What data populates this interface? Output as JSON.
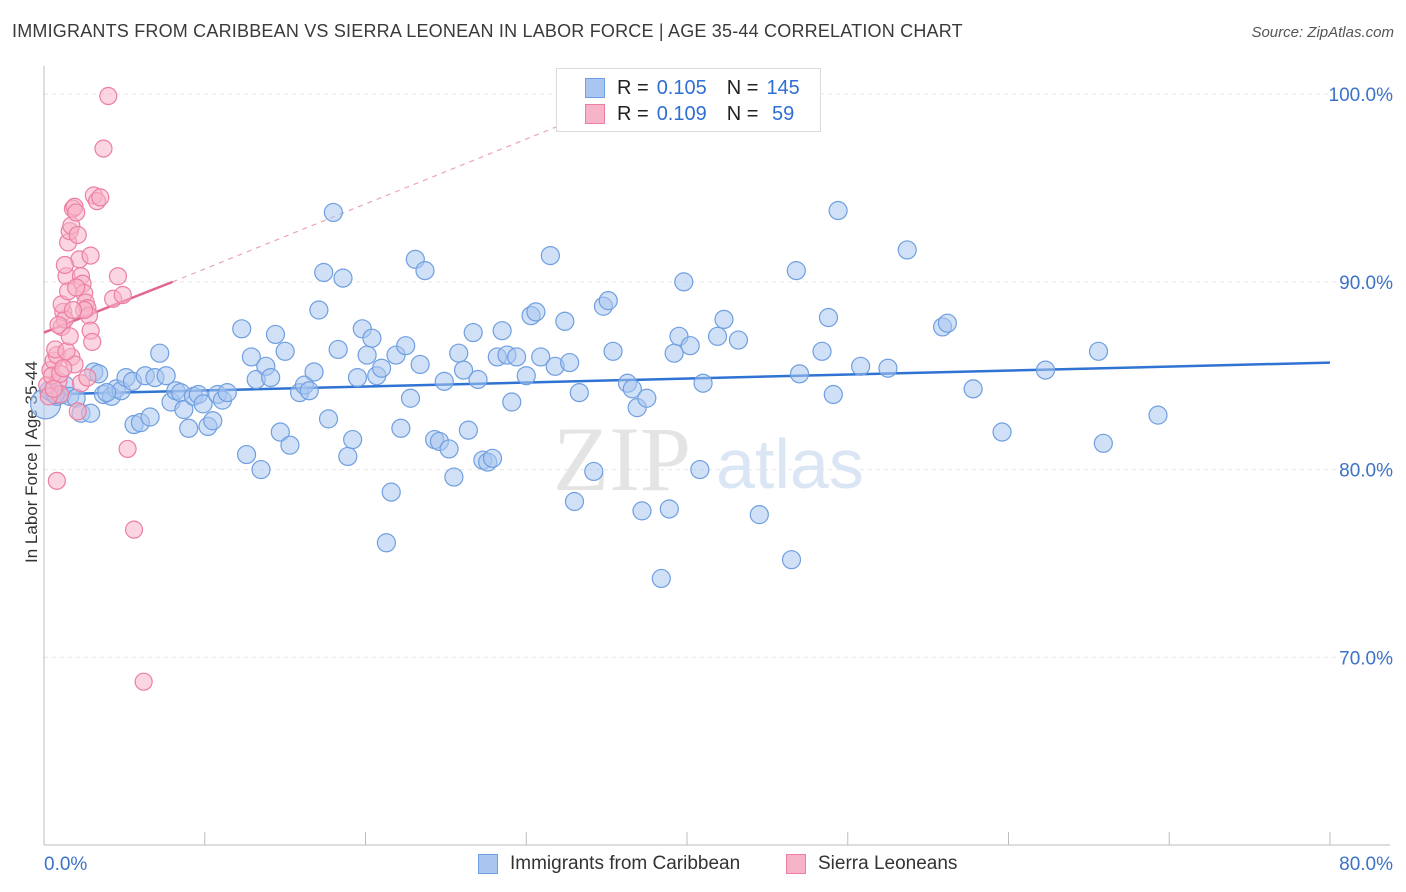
{
  "header": {
    "title": "IMMIGRANTS FROM CARIBBEAN VS SIERRA LEONEAN IN LABOR FORCE | AGE 35-44 CORRELATION CHART",
    "source": "Source: ZipAtlas.com"
  },
  "watermark": {
    "zip": "ZIP",
    "atlas": "atlas"
  },
  "legend": {
    "rows": [
      {
        "r_label": "R = ",
        "r_value": "0.105",
        "n_label": "N = ",
        "n_value": "145"
      },
      {
        "r_label": "R = ",
        "r_value": "0.109",
        "n_label": "N = ",
        "n_value": " 59"
      }
    ]
  },
  "bottom_legend": {
    "blue": "Immigrants from Caribbean",
    "pink": "Sierra Leoneans"
  },
  "colors": {
    "blue_fill": "#a9c6f0",
    "blue_stroke": "#6f9fe0",
    "blue_line": "#2f73d3",
    "pink_fill": "#f7b3c8",
    "pink_stroke": "#ec7fa2",
    "pink_line": "#e06590",
    "tick_label": "#3d73c7",
    "grid": "#e6e6e6"
  },
  "chart_data": {
    "type": "scatter",
    "title": "IMMIGRANTS FROM CARIBBEAN VS SIERRA LEONEAN IN LABOR FORCE | AGE 35-44 CORRELATION CHART",
    "xlabel": "",
    "ylabel": "In Labor Force | Age 35-44",
    "xlim": [
      0,
      80
    ],
    "ylim": [
      60,
      101.5
    ],
    "x_tick_labels": [
      "0.0%",
      "80.0%"
    ],
    "y_ticks": [
      70,
      80,
      90,
      100
    ],
    "y_tick_labels": [
      "70.0%",
      "80.0%",
      "90.0%",
      "100.0%"
    ],
    "series": [
      {
        "name": "Immigrants from Caribbean",
        "color": "blue",
        "r": 0.105,
        "n": 145,
        "trend": {
          "x": [
            0,
            80
          ],
          "y": [
            84.0,
            85.7
          ]
        },
        "points": [
          [
            0.1,
            83.5
          ],
          [
            0.5,
            84.1
          ],
          [
            0.8,
            83.9
          ],
          [
            1.1,
            84.0
          ],
          [
            1.3,
            84.5
          ],
          [
            1.6,
            83.9
          ],
          [
            2.0,
            83.8
          ],
          [
            2.3,
            83.0
          ],
          [
            2.9,
            83.0
          ],
          [
            3.1,
            85.2
          ],
          [
            3.4,
            85.1
          ],
          [
            3.7,
            84.0
          ],
          [
            4.2,
            83.9
          ],
          [
            4.5,
            84.3
          ],
          [
            4.8,
            84.2
          ],
          [
            5.1,
            84.9
          ],
          [
            5.5,
            84.7
          ],
          [
            5.6,
            82.4
          ],
          [
            6.0,
            82.5
          ],
          [
            6.3,
            85.0
          ],
          [
            6.6,
            82.8
          ],
          [
            6.9,
            84.9
          ],
          [
            7.2,
            86.2
          ],
          [
            7.6,
            85.0
          ],
          [
            7.9,
            83.6
          ],
          [
            8.2,
            84.2
          ],
          [
            8.5,
            84.1
          ],
          [
            8.7,
            83.2
          ],
          [
            9.0,
            82.2
          ],
          [
            9.3,
            83.9
          ],
          [
            9.6,
            84.0
          ],
          [
            9.9,
            83.5
          ],
          [
            10.2,
            82.3
          ],
          [
            10.5,
            82.6
          ],
          [
            10.8,
            84.0
          ],
          [
            11.1,
            83.7
          ],
          [
            11.4,
            84.1
          ],
          [
            12.3,
            87.5
          ],
          [
            12.6,
            80.8
          ],
          [
            12.9,
            86.0
          ],
          [
            13.2,
            84.8
          ],
          [
            13.5,
            80.0
          ],
          [
            13.8,
            85.5
          ],
          [
            14.1,
            84.9
          ],
          [
            14.4,
            87.2
          ],
          [
            14.7,
            82.0
          ],
          [
            15.0,
            86.3
          ],
          [
            15.3,
            81.3
          ],
          [
            15.9,
            84.1
          ],
          [
            16.2,
            84.5
          ],
          [
            16.5,
            84.2
          ],
          [
            16.8,
            85.2
          ],
          [
            17.1,
            88.5
          ],
          [
            17.4,
            90.5
          ],
          [
            17.7,
            82.7
          ],
          [
            18.0,
            93.7
          ],
          [
            18.3,
            86.4
          ],
          [
            18.6,
            90.2
          ],
          [
            18.9,
            80.7
          ],
          [
            19.2,
            81.6
          ],
          [
            19.5,
            84.9
          ],
          [
            19.8,
            87.5
          ],
          [
            20.1,
            86.1
          ],
          [
            20.4,
            87.0
          ],
          [
            20.7,
            85.0
          ],
          [
            21.0,
            85.4
          ],
          [
            21.3,
            76.1
          ],
          [
            21.6,
            78.8
          ],
          [
            21.9,
            86.1
          ],
          [
            22.2,
            82.2
          ],
          [
            22.5,
            86.6
          ],
          [
            22.8,
            83.8
          ],
          [
            23.1,
            91.2
          ],
          [
            23.4,
            85.6
          ],
          [
            23.7,
            90.6
          ],
          [
            24.3,
            81.6
          ],
          [
            24.6,
            81.5
          ],
          [
            24.9,
            84.7
          ],
          [
            25.2,
            81.1
          ],
          [
            25.5,
            79.6
          ],
          [
            25.8,
            86.2
          ],
          [
            26.1,
            85.3
          ],
          [
            26.4,
            82.1
          ],
          [
            26.7,
            87.3
          ],
          [
            27.0,
            84.8
          ],
          [
            27.3,
            80.5
          ],
          [
            27.6,
            80.4
          ],
          [
            27.9,
            80.6
          ],
          [
            28.2,
            86.0
          ],
          [
            28.5,
            87.4
          ],
          [
            28.8,
            86.1
          ],
          [
            29.1,
            83.6
          ],
          [
            29.4,
            86.0
          ],
          [
            30.0,
            85.0
          ],
          [
            30.3,
            88.2
          ],
          [
            30.6,
            88.4
          ],
          [
            30.9,
            86.0
          ],
          [
            31.5,
            91.4
          ],
          [
            31.8,
            85.5
          ],
          [
            32.4,
            87.9
          ],
          [
            32.7,
            85.7
          ],
          [
            33.0,
            78.3
          ],
          [
            33.3,
            84.1
          ],
          [
            34.2,
            79.9
          ],
          [
            34.8,
            88.7
          ],
          [
            35.1,
            89.0
          ],
          [
            35.4,
            86.3
          ],
          [
            36.3,
            84.6
          ],
          [
            36.6,
            84.3
          ],
          [
            36.9,
            83.3
          ],
          [
            37.2,
            77.8
          ],
          [
            37.5,
            83.8
          ],
          [
            38.4,
            74.2
          ],
          [
            38.9,
            77.9
          ],
          [
            39.2,
            86.2
          ],
          [
            39.5,
            87.1
          ],
          [
            39.8,
            90.0
          ],
          [
            40.2,
            86.6
          ],
          [
            40.8,
            80.0
          ],
          [
            41.0,
            84.6
          ],
          [
            41.9,
            87.1
          ],
          [
            42.3,
            88.0
          ],
          [
            43.2,
            86.9
          ],
          [
            44.5,
            77.6
          ],
          [
            46.5,
            75.2
          ],
          [
            46.8,
            90.6
          ],
          [
            47.0,
            85.1
          ],
          [
            48.4,
            86.3
          ],
          [
            48.8,
            88.1
          ],
          [
            49.1,
            84.0
          ],
          [
            49.4,
            93.8
          ],
          [
            50.8,
            85.5
          ],
          [
            52.5,
            85.4
          ],
          [
            53.7,
            91.7
          ],
          [
            55.9,
            87.6
          ],
          [
            56.2,
            87.8
          ],
          [
            57.8,
            84.3
          ],
          [
            59.6,
            82.0
          ],
          [
            62.3,
            85.3
          ],
          [
            65.6,
            86.3
          ],
          [
            65.9,
            81.4
          ],
          [
            69.3,
            82.9
          ],
          [
            0.3,
            84.2
          ],
          [
            0.7,
            84.0
          ],
          [
            3.9,
            84.1
          ]
        ]
      },
      {
        "name": "Sierra Leoneans",
        "color": "pink",
        "r": 0.109,
        "n": 59,
        "trend": {
          "x": [
            0,
            8
          ],
          "y": [
            87.3,
            90.0
          ]
        },
        "trend_dashed": {
          "x": [
            8,
            32
          ],
          "y": [
            90.0,
            98.3
          ]
        },
        "points": [
          [
            0.2,
            84.5
          ],
          [
            0.4,
            85.3
          ],
          [
            0.6,
            85.8
          ],
          [
            0.8,
            86.1
          ],
          [
            0.9,
            84.7
          ],
          [
            1.0,
            84.0
          ],
          [
            1.1,
            87.6
          ],
          [
            1.2,
            88.4
          ],
          [
            1.3,
            88.0
          ],
          [
            1.4,
            90.3
          ],
          [
            1.5,
            92.1
          ],
          [
            1.6,
            92.7
          ],
          [
            1.7,
            93.0
          ],
          [
            1.8,
            93.9
          ],
          [
            1.9,
            94.0
          ],
          [
            2.0,
            93.7
          ],
          [
            2.1,
            92.5
          ],
          [
            2.2,
            91.2
          ],
          [
            2.3,
            90.3
          ],
          [
            2.4,
            89.9
          ],
          [
            2.5,
            89.4
          ],
          [
            2.6,
            88.9
          ],
          [
            2.7,
            88.6
          ],
          [
            2.8,
            88.2
          ],
          [
            2.9,
            87.4
          ],
          [
            3.0,
            86.8
          ],
          [
            0.3,
            83.9
          ],
          [
            0.5,
            85.0
          ],
          [
            0.7,
            86.4
          ],
          [
            0.9,
            87.7
          ],
          [
            1.1,
            88.8
          ],
          [
            1.3,
            90.9
          ],
          [
            1.5,
            89.5
          ],
          [
            1.7,
            86.0
          ],
          [
            1.9,
            85.6
          ],
          [
            2.1,
            83.1
          ],
          [
            2.3,
            84.6
          ],
          [
            2.5,
            88.5
          ],
          [
            2.7,
            84.9
          ],
          [
            2.9,
            91.4
          ],
          [
            3.1,
            94.6
          ],
          [
            3.3,
            94.3
          ],
          [
            3.5,
            94.5
          ],
          [
            3.7,
            97.1
          ],
          [
            4.0,
            99.9
          ],
          [
            4.3,
            89.1
          ],
          [
            4.6,
            90.3
          ],
          [
            4.9,
            89.3
          ],
          [
            5.2,
            81.1
          ],
          [
            5.6,
            76.8
          ],
          [
            6.2,
            68.7
          ],
          [
            0.8,
            79.4
          ],
          [
            1.0,
            85.1
          ],
          [
            1.2,
            85.4
          ],
          [
            1.4,
            86.3
          ],
          [
            1.6,
            87.1
          ],
          [
            1.8,
            88.5
          ],
          [
            2.0,
            89.7
          ],
          [
            0.6,
            84.3
          ]
        ]
      }
    ]
  }
}
